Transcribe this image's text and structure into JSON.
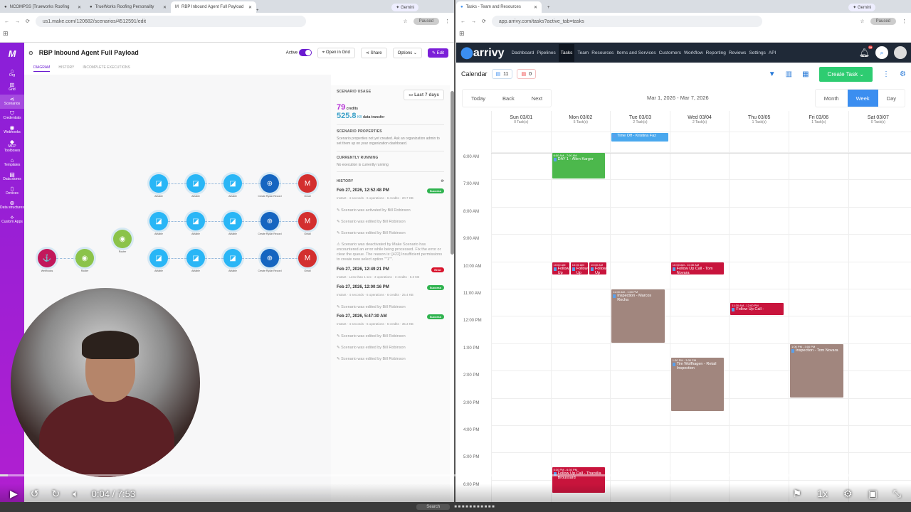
{
  "left_browser": {
    "tabs": [
      {
        "label": "NCOMPSS [Trueworks Roofing"
      },
      {
        "label": "TrueWorks Roofing Personality"
      },
      {
        "label": "RBP Inbound Agent Full Payload",
        "active": true
      }
    ],
    "gemini": "Gemini",
    "url": "us1.make.com/120682/scenarios/4512591/edit",
    "profile": "Paused"
  },
  "make": {
    "sidebar": [
      "Org",
      "Grid",
      "Scenarios",
      "Credentials",
      "Webhooks",
      "MCP Toolboxes",
      "Templates",
      "Data stores",
      "Devices",
      "Data structures",
      "Custom Apps"
    ],
    "active_item": "Scenarios",
    "brand_color": "#8a1fd8",
    "title": "RBP Inbound Agent Full Payload",
    "active_label": "Active",
    "open_grid": "Open in Grid",
    "share": "Share",
    "options": "Options",
    "edit": "Edit",
    "tabs": [
      "DIAGRAM",
      "HISTORY",
      "INCOMPLETE EXECUTIONS"
    ],
    "nodes": {
      "webhook": "Webhooks",
      "router": "Router",
      "airtable": "Airtable",
      "http": "Create Rydar Record",
      "gmail": "Gmail"
    },
    "panel": {
      "usage_title": "SCENARIO USAGE",
      "range": "Last 7 days",
      "credits": "79",
      "credits_label": "credits",
      "transfer": "525.8",
      "transfer_unit": "KB",
      "transfer_label": "data transfer",
      "props_title": "SCENARIO PROPERTIES",
      "props_text": "Scenario properties not yet created. Ask an organization admin to set them up on your organization dashboard.",
      "running_title": "CURRENTLY RUNNING",
      "running_text": "No execution is currently running",
      "history_title": "HISTORY",
      "history": [
        {
          "type": "run",
          "date": "Feb 27, 2026, 12:52:48 PM",
          "status": "Success",
          "meta": "Instant · 4 seconds · 6 operations · 6 credits · 20.7 KB"
        },
        {
          "type": "event",
          "text": "Scenario was activated by Bill Robinson"
        },
        {
          "type": "event",
          "text": "Scenario was edited by Bill Robinson"
        },
        {
          "type": "event",
          "text": "Scenario was edited by Bill Robinson"
        },
        {
          "type": "warn",
          "text": "Scenario was deactivated by Make Scenario has encountered an error while being processed. Fix the error or clear the queue. The reason is: [422] Insufficient permissions to create new select option \"\"1\"\"."
        },
        {
          "type": "run",
          "date": "Feb 27, 2026, 12:49:21 PM",
          "status": "Error",
          "meta": "Instant · Less than 1 sec · 3 operations · 3 credits · 6.3 KB"
        },
        {
          "type": "run",
          "date": "Feb 27, 2026, 12:00:16 PM",
          "status": "Success",
          "meta": "Instant · 4 seconds · 6 operations · 6 credits · 25.4 KB"
        },
        {
          "type": "event",
          "text": "Scenario was edited by Bill Robinson"
        },
        {
          "type": "run",
          "date": "Feb 27, 2026, 5:47:30 AM",
          "status": "Success",
          "meta": "Instant · 4 seconds · 6 operations · 6 credits · 35.3 KB"
        },
        {
          "type": "event",
          "text": "Scenario was edited by Bill Robinson"
        },
        {
          "type": "event",
          "text": "Scenario was edited by Bill Robinson"
        },
        {
          "type": "event",
          "text": "Scenario was edited by Bill Robinson"
        }
      ]
    }
  },
  "right_browser": {
    "tab": "Tasks - Team and Resources",
    "gemini": "Gemini",
    "url": "app.arrivy.com/tasks?active_tab=tasks",
    "profile": "Paused"
  },
  "arrivy": {
    "logo": "arrivy",
    "nav": [
      "Dashboard",
      "Pipelines",
      "Tasks",
      "Team",
      "Resources",
      "Items and Services",
      "Customers",
      "Workflow",
      "Reporting",
      "Reviews",
      "Settings",
      "API"
    ],
    "active_nav": "Tasks",
    "notif_count": "29",
    "calendar_label": "Calendar",
    "task_count": "11",
    "unassigned_count": "0",
    "create_task": "Create Task",
    "today": "Today",
    "back": "Back",
    "next": "Next",
    "range": "Mar 1, 2026 - Mar 7, 2026",
    "views": [
      "Month",
      "Week",
      "Day"
    ],
    "active_view": "Week",
    "days": [
      {
        "label": "Sun 03/01",
        "count": "0 Task(s)"
      },
      {
        "label": "Mon 03/02",
        "count": "5 Task(s)"
      },
      {
        "label": "Tue 03/03",
        "count": "2 Task(s)"
      },
      {
        "label": "Wed 03/04",
        "count": "2 Task(s)"
      },
      {
        "label": "Thu 03/05",
        "count": "1 Task(s)"
      },
      {
        "label": "Fri 03/06",
        "count": "1 Task(s)"
      },
      {
        "label": "Sat 03/07",
        "count": "0 Task(s)"
      }
    ],
    "hours": [
      "6:00 AM",
      "7:00 AM",
      "8:00 AM",
      "9:00 AM",
      "10:00 AM",
      "11:00 AM",
      "12:00 PM",
      "1:00 PM",
      "2:00 PM",
      "3:00 PM",
      "4:00 PM",
      "5:00 PM",
      "6:00 PM"
    ],
    "allday": [
      {
        "day": 2,
        "title": "Time Off - Kristina Faz",
        "color": "#4aa8ee"
      }
    ],
    "events": [
      {
        "day": 1,
        "start": 6,
        "end": 7,
        "time": "6:00 AM - 7:00 AM",
        "title": "DAY 1 - Allen Karger",
        "color": "#4cb84c"
      },
      {
        "day": 1,
        "start": 10,
        "end": 10.5,
        "time": "10:00 AM",
        "title": "Follow Up",
        "color": "#c8143c",
        "slot": 0,
        "slots": 3
      },
      {
        "day": 1,
        "start": 10,
        "end": 10.5,
        "time": "10:00 AM",
        "title": "Follow Up",
        "color": "#c8143c",
        "slot": 1,
        "slots": 3
      },
      {
        "day": 1,
        "start": 10,
        "end": 10.5,
        "time": "10:00 AM",
        "title": "Follow Up",
        "color": "#c8143c",
        "slot": 2,
        "slots": 3
      },
      {
        "day": 3,
        "start": 10,
        "end": 10.5,
        "time": "10:00 AM - 10:30 AM",
        "title": "Follow Up Call - Tom Novara",
        "color": "#c8143c"
      },
      {
        "day": 2,
        "start": 11,
        "end": 13,
        "time": "11:00 AM - 1:00 PM",
        "title": "Inspection - Marcos Rocha",
        "color": "#a1867e"
      },
      {
        "day": 4,
        "start": 11.5,
        "end": 12,
        "time": "11:30 AM - 12:00 PM",
        "title": "Follow Up Call -",
        "color": "#c8143c"
      },
      {
        "day": 3,
        "start": 13.5,
        "end": 15.5,
        "time": "1:30 PM - 3:30 PM",
        "title": "Tim Wolfhagen - Retail Inspection",
        "color": "#a1867e"
      },
      {
        "day": 5,
        "start": 13,
        "end": 15,
        "time": "1:00 PM - 3:00 PM",
        "title": "Inspection - Tom Novara",
        "color": "#a1867e"
      },
      {
        "day": 1,
        "start": 17.5,
        "end": 18.5,
        "time": "5:30 PM - 6:30 PM",
        "title": "Follow Up Call - Tharsilia Broussard",
        "color": "#c8143c"
      }
    ]
  },
  "video": {
    "time": "0:04 / 7:53",
    "progress": 0.0085,
    "speed": "1x"
  },
  "taskbar": {
    "search": "Search"
  }
}
